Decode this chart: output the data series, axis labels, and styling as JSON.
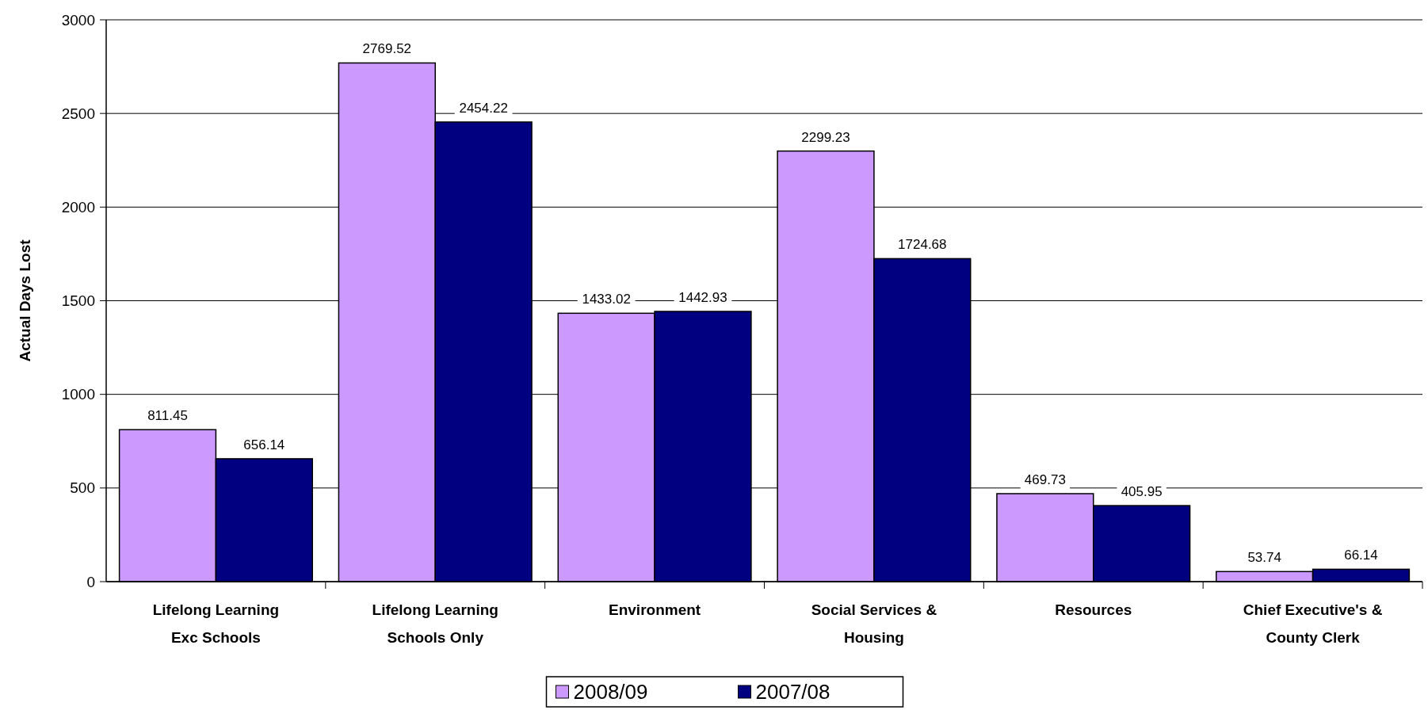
{
  "chart_data": {
    "type": "bar",
    "ylabel": "Actual Days Lost",
    "categories": [
      "Lifelong Learning Exc Schools",
      "Lifelong Learning Schools Only",
      "Environment",
      "Social Services & Housing",
      "Resources",
      "Chief Executive's & County Clerk"
    ],
    "series": [
      {
        "name": "2008/09",
        "color": "#cc99ff",
        "values": [
          811.45,
          2769.52,
          1433.02,
          2299.23,
          469.73,
          53.74
        ]
      },
      {
        "name": "2007/08",
        "color": "#000080",
        "values": [
          656.14,
          2454.22,
          1442.93,
          1724.68,
          405.95,
          66.14
        ]
      }
    ],
    "ylim": [
      0,
      3000
    ],
    "yticks": [
      0,
      500,
      1000,
      1500,
      2000,
      2500,
      3000
    ],
    "grid": "y",
    "legend": "bottom",
    "data_labels": true
  }
}
